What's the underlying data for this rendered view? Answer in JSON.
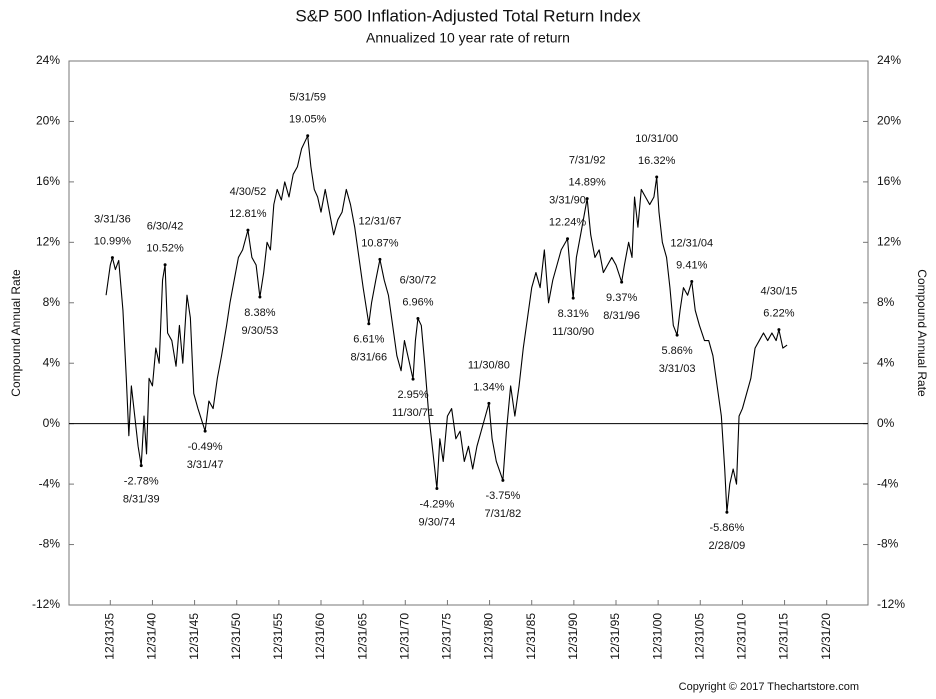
{
  "chart_data": {
    "type": "line",
    "title": "S&P 500 Inflation-Adjusted Total Return Index",
    "subtitle": "Annualized 10 year rate of return",
    "y_label": "Compound Annual Rate",
    "y2_label": "Compound Annual Rate",
    "copyright": "Copyright © 2017 Thechartstore.com",
    "color": "#000000",
    "xlim": [
      1931.1,
      2025.9
    ],
    "xticks": [
      {
        "value": 1936,
        "label": "12/31/35"
      },
      {
        "value": 1941,
        "label": "12/31/40"
      },
      {
        "value": 1946,
        "label": "12/31/45"
      },
      {
        "value": 1951,
        "label": "12/31/50"
      },
      {
        "value": 1956,
        "label": "12/31/55"
      },
      {
        "value": 1961,
        "label": "12/31/60"
      },
      {
        "value": 1966,
        "label": "12/31/65"
      },
      {
        "value": 1971,
        "label": "12/31/70"
      },
      {
        "value": 1976,
        "label": "12/31/75"
      },
      {
        "value": 1981,
        "label": "12/31/80"
      },
      {
        "value": 1986,
        "label": "12/31/85"
      },
      {
        "value": 1991,
        "label": "12/31/90"
      },
      {
        "value": 1996,
        "label": "12/31/95"
      },
      {
        "value": 2001,
        "label": "12/31/00"
      },
      {
        "value": 2006,
        "label": "12/31/05"
      },
      {
        "value": 2011,
        "label": "12/31/10"
      },
      {
        "value": 2016,
        "label": "12/31/15"
      },
      {
        "value": 2021,
        "label": "12/31/20"
      }
    ],
    "ylim": [
      -12,
      24
    ],
    "yticks": [
      {
        "value": -12,
        "label": "-12%"
      },
      {
        "value": -8,
        "label": "-8%"
      },
      {
        "value": -4,
        "label": "-4%"
      },
      {
        "value": 0,
        "label": "0%"
      },
      {
        "value": 4,
        "label": "4%"
      },
      {
        "value": 8,
        "label": "8%"
      },
      {
        "value": 12,
        "label": "12%"
      },
      {
        "value": 16,
        "label": "16%"
      },
      {
        "value": 20,
        "label": "20%"
      },
      {
        "value": 24,
        "label": "24%"
      }
    ],
    "y2lim": [
      -12,
      24
    ],
    "y2ticks": [
      {
        "value": -12,
        "label": "-12%"
      },
      {
        "value": -8,
        "label": "-8%"
      },
      {
        "value": -4,
        "label": "-4%"
      },
      {
        "value": 0,
        "label": "0%"
      },
      {
        "value": 4,
        "label": "4%"
      },
      {
        "value": 8,
        "label": "8%"
      },
      {
        "value": 12,
        "label": "12%"
      },
      {
        "value": 16,
        "label": "16%"
      },
      {
        "value": 20,
        "label": "20%"
      },
      {
        "value": 24,
        "label": "24%"
      }
    ],
    "x": [
      1935.5,
      1936.0,
      1936.25,
      1936.6,
      1937.0,
      1937.5,
      1937.9,
      1938.2,
      1938.5,
      1938.9,
      1939.3,
      1939.67,
      1940.0,
      1940.3,
      1940.6,
      1941.0,
      1941.4,
      1941.8,
      1942.2,
      1942.5,
      1942.8,
      1943.3,
      1943.8,
      1944.2,
      1944.6,
      1945.1,
      1945.5,
      1945.9,
      1946.4,
      1947.25,
      1947.7,
      1948.2,
      1948.7,
      1949.2,
      1949.8,
      1950.2,
      1950.7,
      1951.2,
      1951.7,
      1952.33,
      1952.8,
      1953.3,
      1953.75,
      1954.2,
      1954.6,
      1955.0,
      1955.4,
      1955.8,
      1956.3,
      1956.7,
      1957.2,
      1957.7,
      1958.2,
      1958.7,
      1959.42,
      1959.8,
      1960.2,
      1960.6,
      1961.0,
      1961.5,
      1962.0,
      1962.5,
      1963.0,
      1963.5,
      1964.0,
      1964.5,
      1965.0,
      1965.5,
      1966.0,
      1966.67,
      1967.0,
      1967.5,
      1967.99,
      1968.5,
      1969.0,
      1969.5,
      1970.0,
      1970.5,
      1970.9,
      1971.5,
      1971.92,
      1972.2,
      1972.5,
      1972.9,
      1973.3,
      1973.8,
      1974.3,
      1974.75,
      1975.1,
      1975.5,
      1976.0,
      1976.5,
      1977.0,
      1977.5,
      1978.0,
      1978.5,
      1979.0,
      1979.5,
      1980.0,
      1980.5,
      1980.92,
      1981.3,
      1981.8,
      1982.58,
      1983.0,
      1983.5,
      1984.0,
      1984.5,
      1985.0,
      1985.5,
      1986.0,
      1986.5,
      1987.0,
      1987.5,
      1988.0,
      1988.5,
      1989.0,
      1989.5,
      1990.25,
      1990.6,
      1990.92,
      1991.3,
      1991.8,
      1992.58,
      1993.0,
      1993.5,
      1994.0,
      1994.5,
      1995.0,
      1995.5,
      1996.0,
      1996.67,
      1997.0,
      1997.5,
      1997.9,
      1998.2,
      1998.6,
      1999.0,
      1999.5,
      2000.0,
      2000.5,
      2000.83,
      2001.1,
      2001.5,
      2002.0,
      2002.4,
      2002.8,
      2003.25,
      2003.6,
      2004.0,
      2004.5,
      2004.99,
      2005.4,
      2005.9,
      2006.5,
      2007.0,
      2007.5,
      2008.0,
      2008.5,
      2008.9,
      2009.16,
      2009.5,
      2009.9,
      2010.3,
      2010.6,
      2011.0,
      2011.5,
      2012.0,
      2012.5,
      2013.0,
      2013.5,
      2014.0,
      2014.5,
      2015.0,
      2015.33,
      2015.8,
      2016.3
    ],
    "values": [
      8.5,
      10.5,
      10.99,
      10.2,
      10.8,
      7.5,
      3,
      -0.8,
      2.5,
      0.5,
      -1.5,
      -2.78,
      0.5,
      -2,
      3,
      2.5,
      5,
      4,
      9.5,
      10.52,
      6,
      5.5,
      3.8,
      6.5,
      4,
      8.5,
      7,
      2,
      1,
      -0.49,
      1.5,
      1,
      3,
      4.5,
      6.5,
      8,
      9.5,
      11,
      11.5,
      12.81,
      11,
      10.5,
      8.38,
      10,
      12,
      11.5,
      14.5,
      15.5,
      14.8,
      16,
      15,
      16.5,
      17,
      18.2,
      19.05,
      17,
      15.5,
      15,
      14,
      15.5,
      14,
      12.5,
      13.5,
      14,
      15.5,
      14.5,
      13,
      11,
      9,
      6.61,
      8,
      9.5,
      10.87,
      9.5,
      8.5,
      6.5,
      4.5,
      3.5,
      5.5,
      4,
      2.95,
      5.5,
      6.96,
      6.5,
      4,
      0.5,
      -2,
      -4.29,
      -1,
      -2.5,
      0.5,
      1,
      -1,
      -0.5,
      -2.5,
      -1.5,
      -3,
      -1.5,
      -0.5,
      0.5,
      1.34,
      -1,
      -2.5,
      -3.75,
      -0.5,
      2.5,
      0.5,
      2.5,
      5,
      7,
      9,
      10,
      9,
      11.5,
      8,
      9.5,
      10.5,
      11.5,
      12.24,
      10,
      8.31,
      11,
      12.5,
      14.89,
      12.5,
      11,
      11.5,
      10,
      10.5,
      11,
      10.5,
      9.37,
      10.5,
      12,
      11,
      15,
      13,
      15.5,
      15,
      14.5,
      15,
      16.32,
      14,
      12,
      11,
      9,
      6.5,
      5.86,
      7.5,
      9,
      8.5,
      9.41,
      7.5,
      6.5,
      5.5,
      5.5,
      4.5,
      2.5,
      0.5,
      -3,
      -5.86,
      -4,
      -3,
      -4,
      0.5,
      1,
      2,
      3,
      5,
      5.5,
      6,
      5.5,
      6,
      5.5,
      6.22,
      5,
      5.2
    ],
    "annotations": [
      {
        "date": "3/31/36",
        "x": 1936.25,
        "value": 10.99,
        "value_label": "10.99%"
      },
      {
        "date": "8/31/39",
        "x": 1939.67,
        "value": -2.78,
        "value_label": "-2.78%"
      },
      {
        "date": "6/30/42",
        "x": 1942.5,
        "value": 10.52,
        "value_label": "10.52%"
      },
      {
        "date": "3/31/47",
        "x": 1947.25,
        "value": -0.49,
        "value_label": "-0.49%"
      },
      {
        "date": "4/30/52",
        "x": 1952.33,
        "value": 12.81,
        "value_label": "12.81%"
      },
      {
        "date": "9/30/53",
        "x": 1953.75,
        "value": 8.38,
        "value_label": "8.38%"
      },
      {
        "date": "5/31/59",
        "x": 1959.42,
        "value": 19.05,
        "value_label": "19.05%"
      },
      {
        "date": "8/31/66",
        "x": 1966.67,
        "value": 6.61,
        "value_label": "6.61%"
      },
      {
        "date": "12/31/67",
        "x": 1967.99,
        "value": 10.87,
        "value_label": "10.87%"
      },
      {
        "date": "11/30/71",
        "x": 1971.92,
        "value": 2.95,
        "value_label": "2.95%"
      },
      {
        "date": "6/30/72",
        "x": 1972.5,
        "value": 6.96,
        "value_label": "6.96%"
      },
      {
        "date": "9/30/74",
        "x": 1974.75,
        "value": -4.29,
        "value_label": "-4.29%"
      },
      {
        "date": "11/30/80",
        "x": 1980.92,
        "value": 1.34,
        "value_label": "1.34%"
      },
      {
        "date": "7/31/82",
        "x": 1982.58,
        "value": -3.75,
        "value_label": "-3.75%"
      },
      {
        "date": "3/31/90",
        "x": 1990.25,
        "value": 12.24,
        "value_label": "12.24%"
      },
      {
        "date": "11/30/90",
        "x": 1990.92,
        "value": 8.31,
        "value_label": "8.31%"
      },
      {
        "date": "7/31/92",
        "x": 1992.58,
        "value": 14.89,
        "value_label": "14.89%"
      },
      {
        "date": "8/31/96",
        "x": 1996.67,
        "value": 9.37,
        "value_label": "9.37%"
      },
      {
        "date": "10/31/00",
        "x": 2000.83,
        "value": 16.32,
        "value_label": "16.32%"
      },
      {
        "date": "3/31/03",
        "x": 2003.25,
        "value": 5.86,
        "value_label": "5.86%"
      },
      {
        "date": "12/31/04",
        "x": 2004.99,
        "value": 9.41,
        "value_label": "9.41%"
      },
      {
        "date": "2/28/09",
        "x": 2009.16,
        "value": -5.86,
        "value_label": "-5.86%"
      },
      {
        "date": "4/30/15",
        "x": 2015.33,
        "value": 6.22,
        "value_label": "6.22%"
      }
    ]
  }
}
